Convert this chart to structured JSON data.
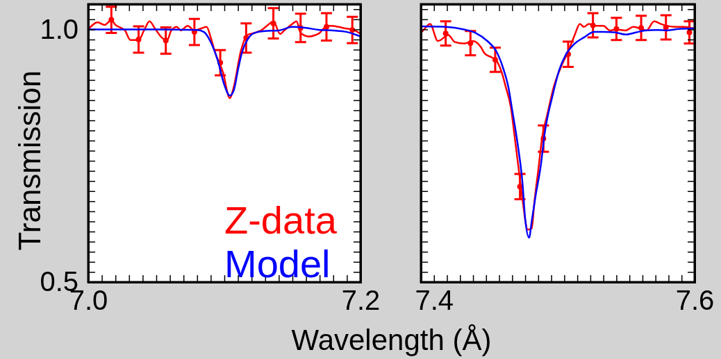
{
  "chart_data": [
    {
      "type": "line",
      "xlabel": "Wavelength (Å)",
      "ylabel": "Transmission",
      "legend": "bottom right",
      "xlim": [
        7.0,
        7.2
      ],
      "ylim": [
        0.5,
        1.05
      ],
      "xticks": [
        {
          "value": 7.0,
          "label": "7.0"
        },
        {
          "value": 7.01,
          "label": null
        },
        {
          "value": 7.02,
          "label": null
        },
        {
          "value": 7.03,
          "label": null
        },
        {
          "value": 7.04,
          "label": null
        },
        {
          "value": 7.05,
          "label": null
        },
        {
          "value": 7.06,
          "label": null
        },
        {
          "value": 7.07,
          "label": null
        },
        {
          "value": 7.08,
          "label": null
        },
        {
          "value": 7.09,
          "label": null
        },
        {
          "value": 7.1,
          "label": null
        },
        {
          "value": 7.11,
          "label": null
        },
        {
          "value": 7.12,
          "label": null
        },
        {
          "value": 7.13,
          "label": null
        },
        {
          "value": 7.14,
          "label": null
        },
        {
          "value": 7.15,
          "label": null
        },
        {
          "value": 7.16,
          "label": null
        },
        {
          "value": 7.17,
          "label": null
        },
        {
          "value": 7.18,
          "label": null
        },
        {
          "value": 7.19,
          "label": null
        },
        {
          "value": 7.2,
          "label": "7.2"
        }
      ],
      "yticks": [
        {
          "value": 0.5,
          "label": "0.5"
        },
        {
          "value": 0.52,
          "label": null
        },
        {
          "value": 0.54,
          "label": null
        },
        {
          "value": 0.56,
          "label": null
        },
        {
          "value": 0.58,
          "label": null
        },
        {
          "value": 0.6,
          "label": null
        },
        {
          "value": 0.62,
          "label": null
        },
        {
          "value": 0.64,
          "label": null
        },
        {
          "value": 0.66,
          "label": null
        },
        {
          "value": 0.68,
          "label": null
        },
        {
          "value": 0.7,
          "label": null
        },
        {
          "value": 0.72,
          "label": null
        },
        {
          "value": 0.74,
          "label": null
        },
        {
          "value": 0.76,
          "label": null
        },
        {
          "value": 0.78,
          "label": null
        },
        {
          "value": 0.8,
          "label": null
        },
        {
          "value": 0.82,
          "label": null
        },
        {
          "value": 0.84,
          "label": null
        },
        {
          "value": 0.86,
          "label": null
        },
        {
          "value": 0.88,
          "label": null
        },
        {
          "value": 0.9,
          "label": null
        },
        {
          "value": 0.92,
          "label": null
        },
        {
          "value": 0.94,
          "label": null
        },
        {
          "value": 0.96,
          "label": null
        },
        {
          "value": 0.98,
          "label": null
        },
        {
          "value": 1.0,
          "label": "1.0"
        },
        {
          "value": 1.02,
          "label": null
        },
        {
          "value": 1.04,
          "label": null
        }
      ],
      "series": [
        {
          "name": "Z-data",
          "type": "line",
          "color": "#ff0000",
          "x": [
            7.0,
            7.007,
            7.012,
            7.017,
            7.02,
            7.027,
            7.031,
            7.037,
            7.041,
            7.045,
            7.049,
            7.054,
            7.058,
            7.061,
            7.065,
            7.068,
            7.073,
            7.078,
            7.083,
            7.087,
            7.09,
            7.093,
            7.099,
            7.104,
            7.107,
            7.112,
            7.117,
            7.122,
            7.127,
            7.133,
            7.136,
            7.141,
            7.144,
            7.15,
            7.153,
            7.156,
            7.162,
            7.167,
            7.17,
            7.173,
            7.178,
            7.184,
            7.189,
            7.194,
            7.199
          ],
          "values": [
            1.0,
            1.014,
            1.009,
            1.018,
            1.009,
            0.998,
            0.979,
            0.979,
            0.998,
            1.016,
            1.002,
            0.984,
            0.979,
            0.998,
            1.005,
            0.998,
            1.007,
            0.998,
            1.002,
            1.005,
            0.984,
            0.956,
            0.915,
            0.864,
            0.887,
            0.956,
            0.989,
            0.993,
            0.998,
            1.011,
            1.016,
            0.991,
            0.998,
            1.011,
            1.016,
            0.993,
            0.986,
            0.989,
            0.993,
            1.002,
            1.007,
            1.005,
            1.002,
            1.0,
            0.993
          ]
        },
        {
          "type": "scatter",
          "marker": "circle",
          "color": "#ff0000",
          "x": [
            7.017,
            7.037,
            7.057,
            7.078,
            7.097,
            7.116,
            7.136,
            7.156,
            7.175,
            7.194
          ],
          "values": [
            1.019,
            0.98,
            0.978,
            0.995,
            0.934,
            0.983,
            1.012,
            1.003,
            1.005,
            0.999
          ],
          "errors": [
            0.026,
            0.026,
            0.026,
            0.026,
            0.025,
            0.029,
            0.03,
            0.028,
            0.027,
            0.026
          ]
        },
        {
          "name": "Model",
          "type": "line",
          "color": "#0000ff",
          "x": [
            7.0,
            7.05,
            7.08,
            7.085,
            7.09,
            7.095,
            7.1,
            7.104,
            7.107,
            7.11,
            7.113,
            7.117,
            7.122,
            7.13,
            7.14,
            7.15,
            7.16,
            7.17,
            7.18,
            7.19,
            7.2
          ],
          "values": [
            1.0,
            1.0,
            0.999,
            0.995,
            0.975,
            0.94,
            0.89,
            0.869,
            0.88,
            0.92,
            0.955,
            0.98,
            0.993,
            0.997,
            0.998,
            1.005,
            1.003,
            0.999,
            0.998,
            0.995,
            0.986
          ]
        }
      ]
    },
    {
      "type": "line",
      "tick_labels": "x",
      "xlim": [
        7.39,
        7.6
      ],
      "ylim": [
        0.5,
        1.05
      ],
      "xticks": [
        {
          "value": 7.39,
          "label": null
        },
        {
          "value": 7.4,
          "label": "7.4"
        },
        {
          "value": 7.41,
          "label": null
        },
        {
          "value": 7.42,
          "label": null
        },
        {
          "value": 7.43,
          "label": null
        },
        {
          "value": 7.44,
          "label": null
        },
        {
          "value": 7.45,
          "label": null
        },
        {
          "value": 7.46,
          "label": null
        },
        {
          "value": 7.47,
          "label": null
        },
        {
          "value": 7.48,
          "label": null
        },
        {
          "value": 7.49,
          "label": null
        },
        {
          "value": 7.5,
          "label": null
        },
        {
          "value": 7.51,
          "label": null
        },
        {
          "value": 7.52,
          "label": null
        },
        {
          "value": 7.53,
          "label": null
        },
        {
          "value": 7.54,
          "label": null
        },
        {
          "value": 7.55,
          "label": null
        },
        {
          "value": 7.56,
          "label": null
        },
        {
          "value": 7.57,
          "label": null
        },
        {
          "value": 7.58,
          "label": null
        },
        {
          "value": 7.59,
          "label": null
        },
        {
          "value": 7.6,
          "label": "7.6"
        }
      ],
      "yticks": [
        {
          "value": 0.5,
          "label": null
        },
        {
          "value": 0.52,
          "label": null
        },
        {
          "value": 0.54,
          "label": null
        },
        {
          "value": 0.56,
          "label": null
        },
        {
          "value": 0.58,
          "label": null
        },
        {
          "value": 0.6,
          "label": null
        },
        {
          "value": 0.62,
          "label": null
        },
        {
          "value": 0.64,
          "label": null
        },
        {
          "value": 0.66,
          "label": null
        },
        {
          "value": 0.68,
          "label": null
        },
        {
          "value": 0.7,
          "label": null
        },
        {
          "value": 0.72,
          "label": null
        },
        {
          "value": 0.74,
          "label": null
        },
        {
          "value": 0.76,
          "label": null
        },
        {
          "value": 0.78,
          "label": null
        },
        {
          "value": 0.8,
          "label": null
        },
        {
          "value": 0.82,
          "label": null
        },
        {
          "value": 0.84,
          "label": null
        },
        {
          "value": 0.86,
          "label": null
        },
        {
          "value": 0.88,
          "label": null
        },
        {
          "value": 0.9,
          "label": null
        },
        {
          "value": 0.92,
          "label": null
        },
        {
          "value": 0.94,
          "label": null
        },
        {
          "value": 0.96,
          "label": null
        },
        {
          "value": 0.98,
          "label": null
        },
        {
          "value": 1.0,
          "label": null
        },
        {
          "value": 1.02,
          "label": null
        },
        {
          "value": 1.04,
          "label": null
        }
      ],
      "series": [
        {
          "type": "line",
          "color": "#ff0000",
          "x": [
            7.39,
            7.393,
            7.397,
            7.403,
            7.405,
            7.411,
            7.416,
            7.423,
            7.43,
            7.436,
            7.439,
            7.444,
            7.448,
            7.452,
            7.455,
            7.459,
            7.462,
            7.466,
            7.468,
            7.472,
            7.475,
            7.477,
            7.48,
            7.483,
            7.487,
            7.492,
            7.498,
            7.503,
            7.508,
            7.512,
            7.515,
            7.519,
            7.524,
            7.53,
            7.535,
            7.54,
            7.547,
            7.553,
            7.558,
            7.563,
            7.569,
            7.574,
            7.579,
            7.585,
            7.592,
            7.599
          ],
          "values": [
            0.993,
            1.002,
            1.011,
            0.977,
            0.979,
            0.989,
            0.975,
            0.972,
            0.977,
            0.965,
            0.952,
            0.945,
            0.938,
            0.915,
            0.887,
            0.846,
            0.786,
            0.703,
            0.662,
            0.604,
            0.606,
            0.657,
            0.721,
            0.786,
            0.832,
            0.887,
            0.929,
            0.956,
            0.989,
            1.011,
            1.005,
            1.011,
            1.007,
            1.007,
            0.998,
            1.0,
            0.998,
            1.005,
            1.002,
            0.998,
            1.016,
            1.011,
            1.007,
            1.005,
            1.005,
            1.002
          ]
        },
        {
          "type": "scatter",
          "marker": "circle",
          "color": "#ff0000",
          "x": [
            7.409,
            7.428,
            7.447,
            7.466,
            7.484,
            7.503,
            7.522,
            7.54,
            7.559,
            7.578,
            7.596
          ],
          "values": [
            0.992,
            0.973,
            0.94,
            0.689,
            0.784,
            0.951,
            1.008,
            1.001,
            1.003,
            1.004,
            0.994
          ],
          "errors": [
            0.024,
            0.024,
            0.024,
            0.025,
            0.026,
            0.025,
            0.024,
            0.022,
            0.024,
            0.024,
            0.022
          ]
        },
        {
          "type": "line",
          "color": "#0000ff",
          "x": [
            7.39,
            7.409,
            7.423,
            7.432,
            7.441,
            7.448,
            7.453,
            7.457,
            7.46,
            7.464,
            7.468,
            7.47,
            7.473,
            7.475,
            7.478,
            7.482,
            7.485,
            7.491,
            7.496,
            7.501,
            7.508,
            7.515,
            7.523,
            7.53,
            7.539,
            7.547,
            7.555,
            7.562,
            7.571,
            7.579,
            7.588,
            7.599
          ],
          "values": [
            1.006,
            1.005,
            1.0,
            0.993,
            0.977,
            0.956,
            0.924,
            0.887,
            0.841,
            0.777,
            0.694,
            0.625,
            0.588,
            0.62,
            0.671,
            0.731,
            0.795,
            0.869,
            0.919,
            0.949,
            0.972,
            0.984,
            0.995,
            0.995,
            0.994,
            0.99,
            0.994,
            0.998,
            0.999,
            0.998,
            1.001,
            1.002
          ]
        }
      ]
    }
  ]
}
